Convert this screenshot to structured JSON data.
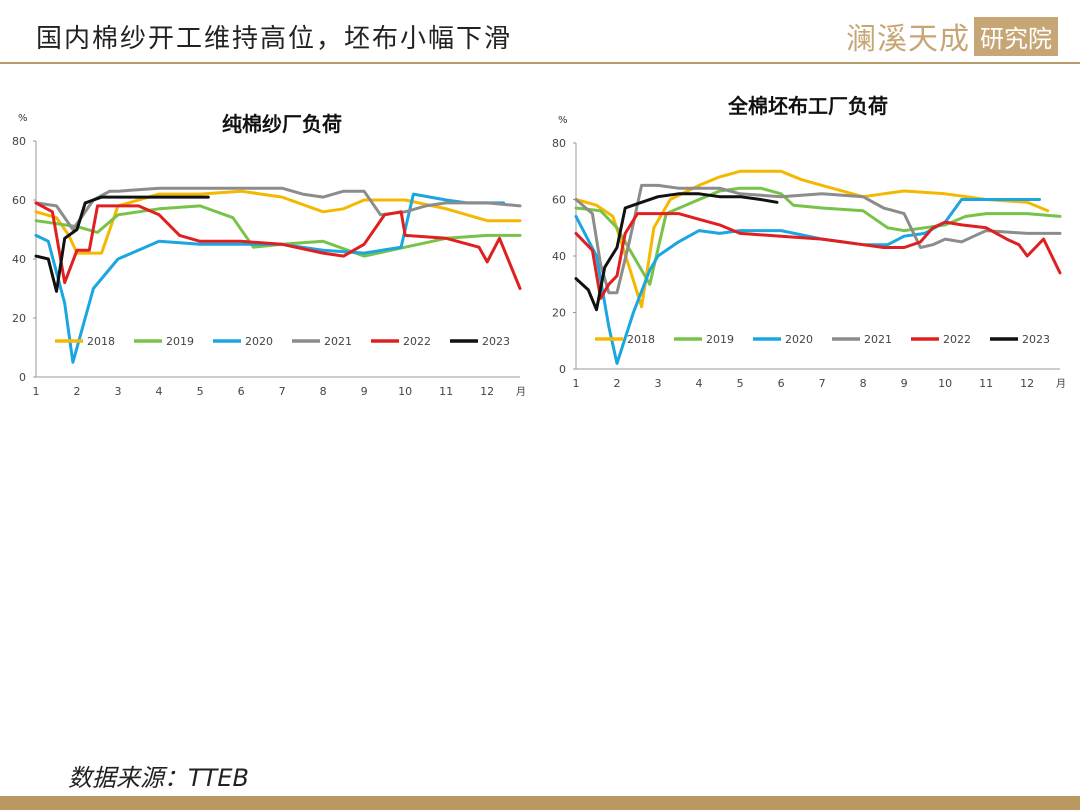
{
  "header": {
    "title": "国内棉纱开工维持高位，坯布小幅下滑",
    "logo_text": "澜溪天成",
    "logo_box": "研究院"
  },
  "footer": {
    "source": "数据来源：TTEB"
  },
  "colors": {
    "accent": "#b89b6b",
    "footer_bar": "#b9995f"
  },
  "chart_data": [
    {
      "type": "line",
      "title": "纯棉纱厂负荷",
      "ylabel": "%",
      "xlabel": "月",
      "xlim": [
        1,
        12.8
      ],
      "ylim": [
        0,
        80
      ],
      "yticks": [
        0,
        20,
        40,
        60,
        80
      ],
      "xticks": [
        1,
        2,
        3,
        4,
        5,
        6,
        7,
        8,
        9,
        10,
        11,
        12
      ],
      "legend_position": "bottom",
      "series": [
        {
          "name": "2018",
          "color": "#f5b800",
          "x": [
            1,
            1.5,
            1.8,
            2.0,
            2.6,
            3.0,
            4.0,
            5.0,
            6.0,
            7.0,
            8.0,
            8.5,
            9.0,
            10.0,
            11.0,
            12.0,
            12.8
          ],
          "y": [
            56,
            54,
            48,
            42,
            42,
            58,
            62,
            62,
            63,
            61,
            56,
            57,
            60,
            60,
            57,
            53,
            53
          ]
        },
        {
          "name": "2019",
          "color": "#78c24a",
          "x": [
            1,
            2.0,
            2.5,
            3.0,
            4.0,
            5.0,
            5.8,
            6.3,
            7.0,
            8.0,
            9.0,
            10.0,
            11.0,
            12.0,
            12.8
          ],
          "y": [
            53,
            51,
            49,
            55,
            57,
            58,
            54,
            44,
            45,
            46,
            41,
            44,
            47,
            48,
            48
          ]
        },
        {
          "name": "2020",
          "color": "#1aa6e0",
          "x": [
            1,
            1.3,
            1.7,
            1.9,
            2.4,
            3.0,
            4.0,
            5.0,
            6.0,
            7.0,
            8.0,
            9.0,
            9.9,
            10.2,
            11.0,
            11.5,
            12.0,
            12.4
          ],
          "y": [
            48,
            46,
            25,
            5,
            30,
            40,
            46,
            45,
            45,
            45,
            43,
            42,
            44,
            62,
            60,
            59,
            59,
            59
          ]
        },
        {
          "name": "2021",
          "color": "#8c8c8c",
          "x": [
            1,
            1.5,
            1.9,
            2.4,
            2.8,
            3.0,
            4.0,
            5.0,
            6.0,
            7.0,
            7.5,
            8.0,
            8.5,
            9.0,
            9.4,
            10.0,
            10.5,
            11.0,
            12.0,
            12.8
          ],
          "y": [
            59,
            58,
            50,
            60,
            63,
            63,
            64,
            64,
            64,
            64,
            62,
            61,
            63,
            63,
            55,
            56,
            58,
            59,
            59,
            58
          ]
        },
        {
          "name": "2022",
          "color": "#e02020",
          "x": [
            1,
            1.4,
            1.7,
            2.0,
            2.3,
            2.5,
            3.0,
            3.5,
            4.0,
            4.5,
            5.0,
            6.0,
            7.0,
            8.0,
            8.5,
            9.0,
            9.5,
            9.9,
            10.0,
            11.0,
            11.8,
            12.0,
            12.3,
            12.8
          ],
          "y": [
            59,
            56,
            32,
            43,
            43,
            58,
            58,
            58,
            55,
            48,
            46,
            46,
            45,
            42,
            41,
            45,
            55,
            56,
            48,
            47,
            44,
            39,
            47,
            30
          ]
        },
        {
          "name": "2023",
          "color": "#111111",
          "x": [
            1,
            1.3,
            1.5,
            1.7,
            2.0,
            2.2,
            2.6,
            3.0,
            3.5,
            4.0,
            4.5,
            5.0,
            5.2
          ],
          "y": [
            41,
            40,
            29,
            47,
            50,
            59,
            61,
            61,
            61,
            61,
            61,
            61,
            61
          ]
        }
      ]
    },
    {
      "type": "line",
      "title": "全棉坯布工厂负荷",
      "ylabel": "%",
      "xlabel": "月",
      "xlim": [
        1,
        12.8
      ],
      "ylim": [
        0,
        80
      ],
      "yticks": [
        0,
        20,
        40,
        60,
        80
      ],
      "xticks": [
        1,
        2,
        3,
        4,
        5,
        6,
        7,
        8,
        9,
        10,
        11,
        12
      ],
      "legend_position": "bottom",
      "series": [
        {
          "name": "2018",
          "color": "#f5b800",
          "x": [
            1,
            1.5,
            1.9,
            2.3,
            2.6,
            2.9,
            3.3,
            4.0,
            4.5,
            5.0,
            6.0,
            6.5,
            7.0,
            8.0,
            8.5,
            9.0,
            10.0,
            11.0,
            12.0,
            12.5
          ],
          "y": [
            60,
            58,
            54,
            36,
            22,
            50,
            60,
            65,
            68,
            70,
            70,
            67,
            65,
            61,
            62,
            63,
            62,
            60,
            59,
            56
          ]
        },
        {
          "name": "2019",
          "color": "#78c24a",
          "x": [
            1,
            1.6,
            2.0,
            2.4,
            2.8,
            3.2,
            4.0,
            4.5,
            5.0,
            5.5,
            6.0,
            6.3,
            7.0,
            8.0,
            8.6,
            9.0,
            9.5,
            10.0,
            10.5,
            11.0,
            12.0,
            12.8
          ],
          "y": [
            57,
            56,
            50,
            40,
            30,
            55,
            60,
            63,
            64,
            64,
            62,
            58,
            57,
            56,
            50,
            49,
            50,
            51,
            54,
            55,
            55,
            54
          ]
        },
        {
          "name": "2020",
          "color": "#1aa6e0",
          "x": [
            1,
            1.5,
            1.8,
            2.0,
            2.4,
            2.8,
            3.0,
            3.5,
            4.0,
            4.5,
            5.0,
            6.0,
            7.0,
            8.0,
            8.6,
            9.0,
            9.5,
            10.0,
            10.4,
            11.0,
            11.5,
            12.0,
            12.3
          ],
          "y": [
            54,
            40,
            15,
            2,
            20,
            35,
            40,
            45,
            49,
            48,
            49,
            49,
            46,
            44,
            44,
            47,
            48,
            52,
            60,
            60,
            60,
            60,
            60
          ]
        },
        {
          "name": "2021",
          "color": "#8c8c8c",
          "x": [
            1,
            1.4,
            1.6,
            1.8,
            2.0,
            2.3,
            2.6,
            3.0,
            3.5,
            4.0,
            4.5,
            5.0,
            6.0,
            7.0,
            8.0,
            8.5,
            9.0,
            9.4,
            9.7,
            10.0,
            10.4,
            10.7,
            11.0,
            12.0,
            12.8
          ],
          "y": [
            60,
            55,
            37,
            27,
            27,
            45,
            65,
            65,
            64,
            64,
            64,
            62,
            61,
            62,
            61,
            57,
            55,
            43,
            44,
            46,
            45,
            47,
            49,
            48,
            48
          ]
        },
        {
          "name": "2022",
          "color": "#e02020",
          "x": [
            1,
            1.4,
            1.6,
            1.8,
            2.0,
            2.2,
            2.5,
            3.0,
            3.5,
            4.0,
            4.5,
            5.0,
            6.0,
            7.0,
            7.5,
            8.0,
            8.5,
            9.0,
            9.4,
            9.7,
            10.0,
            10.4,
            11.0,
            11.5,
            11.8,
            12.0,
            12.4,
            12.8
          ],
          "y": [
            48,
            42,
            25,
            30,
            33,
            48,
            55,
            55,
            55,
            53,
            51,
            48,
            47,
            46,
            45,
            44,
            43,
            43,
            45,
            50,
            52,
            51,
            50,
            46,
            44,
            40,
            46,
            34
          ]
        },
        {
          "name": "2023",
          "color": "#111111",
          "x": [
            1,
            1.3,
            1.5,
            1.7,
            2.0,
            2.2,
            2.6,
            3.0,
            3.5,
            4.0,
            4.5,
            5.0,
            5.5,
            5.9
          ],
          "y": [
            32,
            28,
            21,
            36,
            43,
            57,
            59,
            61,
            62,
            62,
            61,
            61,
            60,
            59
          ]
        }
      ]
    }
  ]
}
